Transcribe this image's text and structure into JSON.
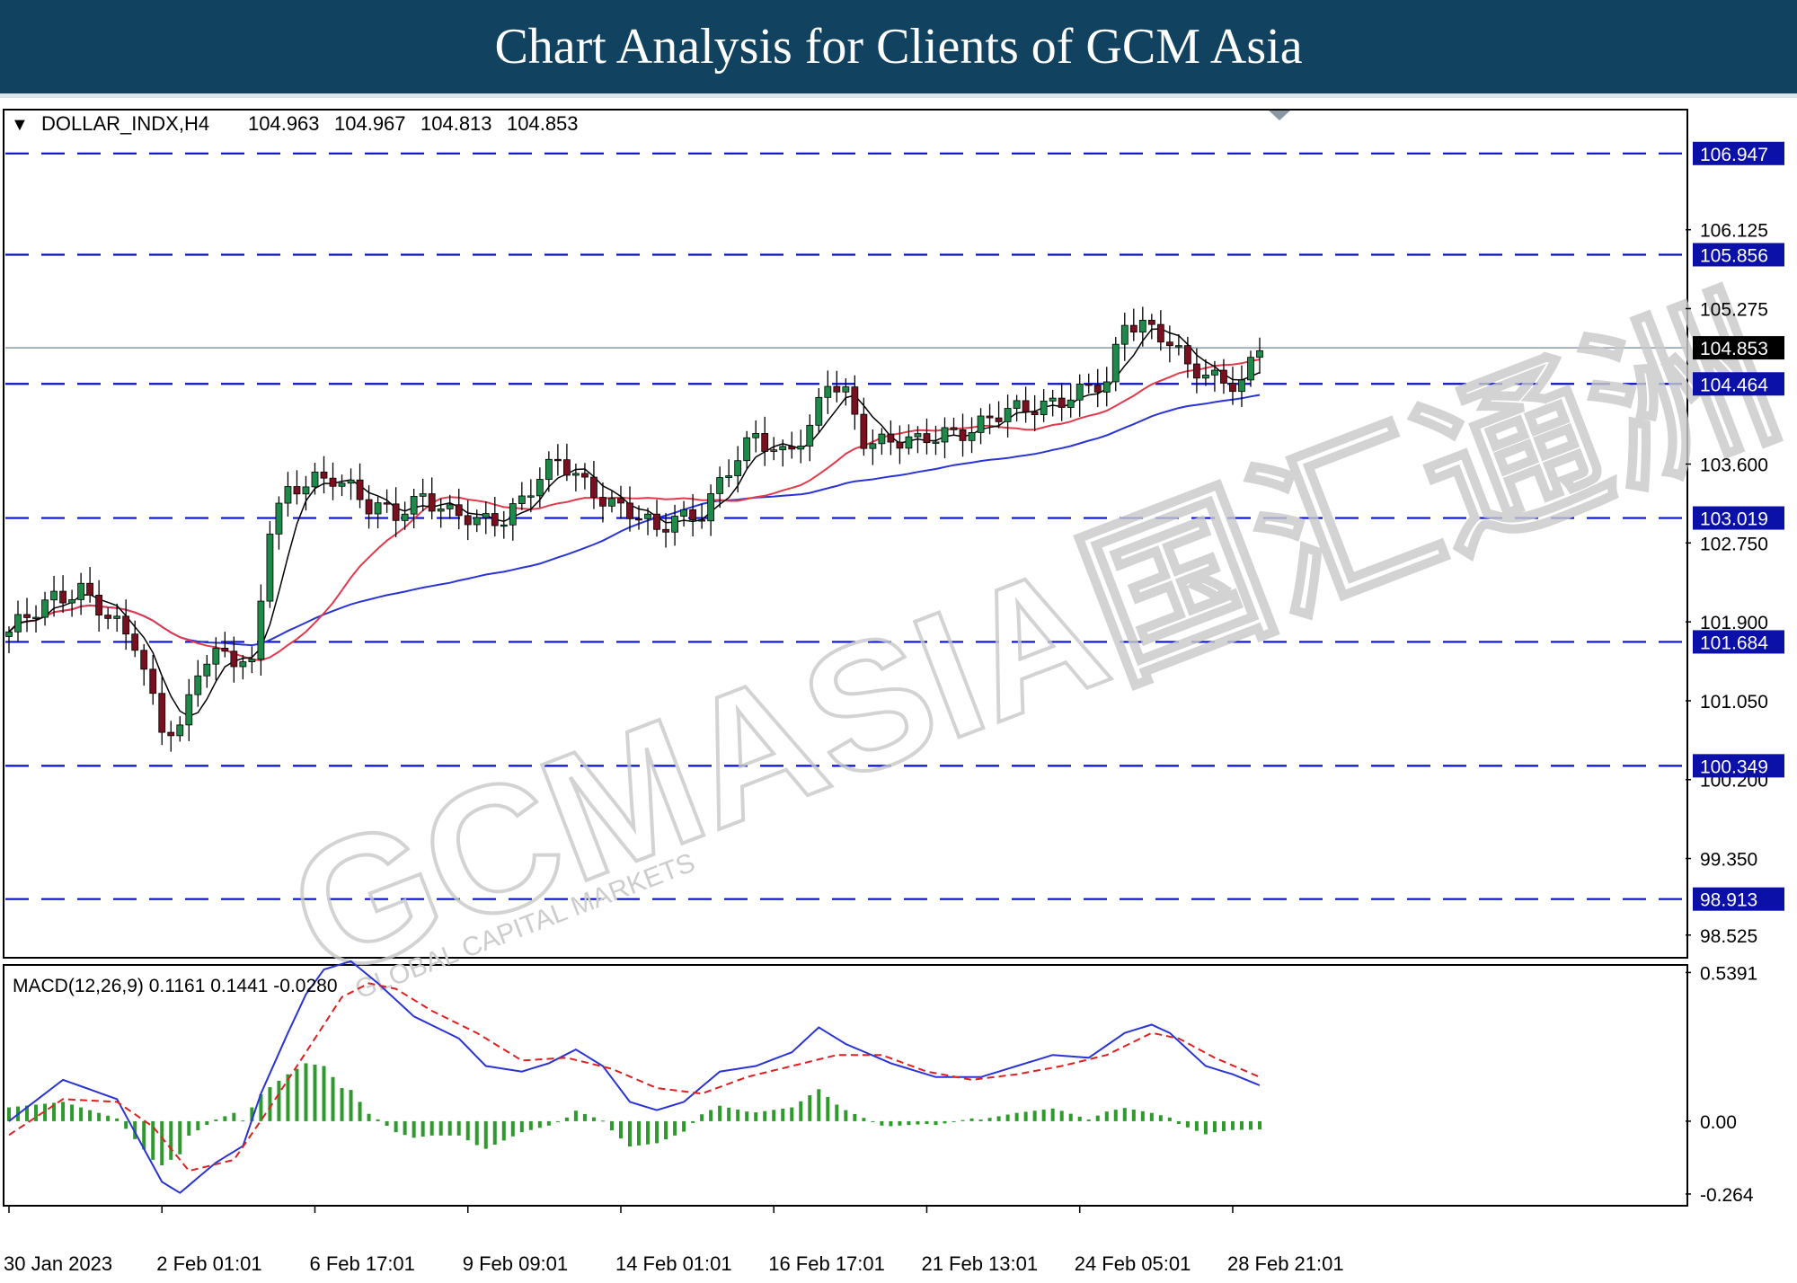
{
  "header": {
    "title": "Chart Analysis for Clients of GCM Asia"
  },
  "watermark": {
    "main": "GCMASIA国汇通洲",
    "sub": "GLOBAL CAPITAL MARKETS"
  },
  "colors": {
    "banner": "#11425f",
    "hline": "#0a10c8",
    "candle_up": "#1d8a4a",
    "candle_down": "#7a0f1f",
    "sma_fast": "#000000",
    "sma_mid": "#e23a4c",
    "sma_slow": "#2a34d6",
    "macd_line": "#2a34d6",
    "macd_signal": "#e02020",
    "macd_hist": "#2e9a2e",
    "label_bg": "#0a10a8",
    "current_bg": "#000000"
  },
  "chart_data": {
    "type": "candlestick",
    "symbol_info": "DOLLAR_INDX,H4",
    "ohlc": {
      "open": "104.963",
      "high": "104.967",
      "low": "104.813",
      "close": "104.853"
    },
    "ylim": [
      98.3,
      107.4
    ],
    "y_ticks": [
      "106.125",
      "105.275",
      "103.600",
      "102.750",
      "101.900",
      "101.050",
      "100.200",
      "99.350",
      "98.525"
    ],
    "levels": [
      {
        "value": 106.947,
        "label": "106.947"
      },
      {
        "value": 105.856,
        "label": "105.856"
      },
      {
        "value": 104.464,
        "label": "104.464"
      },
      {
        "value": 103.019,
        "label": "103.019"
      },
      {
        "value": 101.684,
        "label": "101.684"
      },
      {
        "value": 100.349,
        "label": "100.349"
      },
      {
        "value": 98.913,
        "label": "98.913"
      }
    ],
    "current_price": {
      "value": 104.853,
      "label": "104.853"
    },
    "x_labels": [
      "30 Jan 2023",
      "2 Feb 01:01",
      "6 Feb 17:01",
      "9 Feb 09:01",
      "14 Feb 01:01",
      "16 Feb 17:01",
      "21 Feb 13:01",
      "24 Feb 05:01",
      "28 Feb 21:01"
    ],
    "close_path": [
      [
        0,
        101.75
      ],
      [
        5,
        102.2
      ],
      [
        8,
        102.25
      ],
      [
        11,
        101.9
      ],
      [
        14,
        101.7
      ],
      [
        17,
        100.8
      ],
      [
        19,
        100.7
      ],
      [
        21,
        101.35
      ],
      [
        24,
        101.6
      ],
      [
        27,
        101.45
      ],
      [
        29,
        102.9
      ],
      [
        31,
        103.25
      ],
      [
        34,
        103.45
      ],
      [
        36,
        103.5
      ],
      [
        38,
        103.35
      ],
      [
        40,
        103.1
      ],
      [
        43,
        103.05
      ],
      [
        46,
        103.3
      ],
      [
        49,
        103.05
      ],
      [
        52,
        102.95
      ],
      [
        55,
        103.05
      ],
      [
        58,
        103.35
      ],
      [
        61,
        103.6
      ],
      [
        64,
        103.4
      ],
      [
        67,
        103.2
      ],
      [
        70,
        103.0
      ],
      [
        72,
        102.85
      ],
      [
        74,
        103.05
      ],
      [
        77,
        103.1
      ],
      [
        80,
        103.5
      ],
      [
        83,
        103.9
      ],
      [
        86,
        103.75
      ],
      [
        89,
        103.95
      ],
      [
        91,
        104.45
      ],
      [
        93,
        104.35
      ],
      [
        95,
        103.9
      ],
      [
        98,
        103.85
      ],
      [
        101,
        103.8
      ],
      [
        104,
        103.95
      ],
      [
        107,
        104.0
      ],
      [
        110,
        104.1
      ],
      [
        113,
        104.2
      ],
      [
        116,
        104.3
      ],
      [
        119,
        104.35
      ],
      [
        122,
        104.45
      ],
      [
        124,
        105.15
      ],
      [
        126,
        105.15
      ],
      [
        129,
        104.9
      ],
      [
        131,
        104.6
      ],
      [
        134,
        104.55
      ],
      [
        137,
        104.5
      ],
      [
        139,
        104.85
      ]
    ],
    "macd": {
      "label": "MACD(12,26,9) 0.1161 0.1441 -0.0280",
      "ylim": [
        -0.3,
        0.56
      ],
      "y_ticks": [
        "0.5391",
        "0.00",
        "-0.264"
      ],
      "main_path": [
        [
          0,
          0.0
        ],
        [
          6,
          0.15
        ],
        [
          12,
          0.08
        ],
        [
          17,
          -0.22
        ],
        [
          19,
          -0.26
        ],
        [
          23,
          -0.15
        ],
        [
          26,
          -0.09
        ],
        [
          28,
          0.1
        ],
        [
          31,
          0.32
        ],
        [
          33,
          0.46
        ],
        [
          35,
          0.55
        ],
        [
          38,
          0.58
        ],
        [
          41,
          0.5
        ],
        [
          45,
          0.38
        ],
        [
          50,
          0.3
        ],
        [
          53,
          0.2
        ],
        [
          57,
          0.18
        ],
        [
          60,
          0.21
        ],
        [
          63,
          0.26
        ],
        [
          66,
          0.2
        ],
        [
          69,
          0.07
        ],
        [
          72,
          0.04
        ],
        [
          75,
          0.07
        ],
        [
          79,
          0.18
        ],
        [
          83,
          0.2
        ],
        [
          87,
          0.25
        ],
        [
          90,
          0.34
        ],
        [
          93,
          0.28
        ],
        [
          98,
          0.21
        ],
        [
          103,
          0.16
        ],
        [
          108,
          0.16
        ],
        [
          112,
          0.2
        ],
        [
          116,
          0.24
        ],
        [
          120,
          0.23
        ],
        [
          124,
          0.32
        ],
        [
          127,
          0.35
        ],
        [
          129,
          0.32
        ],
        [
          133,
          0.2
        ],
        [
          136,
          0.17
        ],
        [
          139,
          0.13
        ]
      ],
      "signal_path": [
        [
          0,
          -0.05
        ],
        [
          6,
          0.08
        ],
        [
          12,
          0.07
        ],
        [
          16,
          -0.02
        ],
        [
          20,
          -0.18
        ],
        [
          25,
          -0.14
        ],
        [
          29,
          0.05
        ],
        [
          33,
          0.25
        ],
        [
          37,
          0.45
        ],
        [
          40,
          0.5
        ],
        [
          43,
          0.48
        ],
        [
          47,
          0.4
        ],
        [
          52,
          0.32
        ],
        [
          57,
          0.22
        ],
        [
          62,
          0.23
        ],
        [
          67,
          0.19
        ],
        [
          72,
          0.12
        ],
        [
          77,
          0.1
        ],
        [
          82,
          0.16
        ],
        [
          87,
          0.2
        ],
        [
          92,
          0.24
        ],
        [
          97,
          0.24
        ],
        [
          102,
          0.18
        ],
        [
          107,
          0.15
        ],
        [
          112,
          0.17
        ],
        [
          117,
          0.2
        ],
        [
          122,
          0.24
        ],
        [
          127,
          0.32
        ],
        [
          130,
          0.3
        ],
        [
          134,
          0.23
        ],
        [
          139,
          0.16
        ]
      ]
    }
  }
}
